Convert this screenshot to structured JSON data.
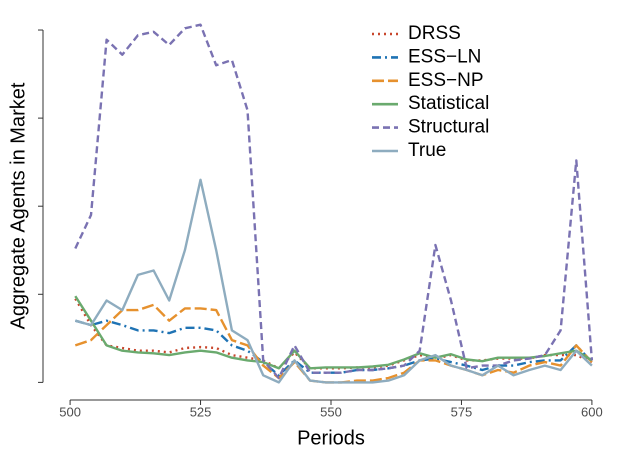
{
  "chart_data": {
    "type": "line",
    "x_label": "Periods",
    "y_label": "Aggregate Agents in Market",
    "x": [
      501,
      504,
      507,
      510,
      513,
      516,
      519,
      522,
      525,
      528,
      531,
      534,
      537,
      540,
      543,
      546,
      549,
      552,
      555,
      558,
      561,
      564,
      567,
      570,
      573,
      576,
      579,
      582,
      585,
      588,
      591,
      594,
      597,
      600
    ],
    "series": [
      {
        "name": "DRSS",
        "color": "#c8462c",
        "linestyle": "dotted",
        "values": [
          0.95,
          0.65,
          0.42,
          0.39,
          0.36,
          0.36,
          0.34,
          0.39,
          0.4,
          0.39,
          0.31,
          0.28,
          0.25,
          0.16,
          0.34,
          0.16,
          0.16,
          0.16,
          0.17,
          0.17,
          0.19,
          0.25,
          0.31,
          0.27,
          0.31,
          0.25,
          0.25,
          0.27,
          0.27,
          0.27,
          0.31,
          0.31,
          0.31,
          0.23
        ]
      },
      {
        "name": "ESS−LN",
        "color": "#1f73b4",
        "linestyle": "dashdot",
        "values": [
          0.7,
          0.65,
          0.7,
          0.65,
          0.59,
          0.59,
          0.56,
          0.62,
          0.62,
          0.59,
          0.42,
          0.36,
          0.23,
          0.08,
          0.25,
          0.11,
          0.11,
          0.11,
          0.14,
          0.14,
          0.16,
          0.19,
          0.25,
          0.27,
          0.23,
          0.19,
          0.14,
          0.19,
          0.19,
          0.23,
          0.25,
          0.25,
          0.42,
          0.23
        ]
      },
      {
        "name": "ESS−NP",
        "color": "#e6912e",
        "linestyle": "longdash",
        "values": [
          0.42,
          0.48,
          0.65,
          0.82,
          0.82,
          0.88,
          0.7,
          0.84,
          0.84,
          0.82,
          0.48,
          0.42,
          0.19,
          0.05,
          0.23,
          0.02,
          0.0,
          0.0,
          0.02,
          0.02,
          0.05,
          0.11,
          0.25,
          0.25,
          0.19,
          0.14,
          0.08,
          0.14,
          0.11,
          0.19,
          0.23,
          0.19,
          0.42,
          0.23
        ]
      },
      {
        "name": "Statistical",
        "color": "#6aaa6e",
        "linestyle": "solid",
        "values": [
          0.98,
          0.7,
          0.42,
          0.36,
          0.34,
          0.33,
          0.31,
          0.34,
          0.36,
          0.34,
          0.28,
          0.25,
          0.23,
          0.16,
          0.36,
          0.16,
          0.17,
          0.17,
          0.17,
          0.18,
          0.2,
          0.26,
          0.33,
          0.28,
          0.32,
          0.26,
          0.24,
          0.28,
          0.28,
          0.28,
          0.3,
          0.33,
          0.36,
          0.25
        ]
      },
      {
        "name": "Structural",
        "color": "#7a72b2",
        "linestyle": "dashed",
        "values": [
          1.52,
          1.9,
          3.89,
          3.72,
          3.94,
          3.98,
          3.83,
          4.02,
          4.06,
          3.6,
          3.66,
          3.09,
          0.25,
          0.05,
          0.42,
          0.11,
          0.11,
          0.11,
          0.14,
          0.14,
          0.16,
          0.19,
          0.36,
          1.56,
          0.93,
          0.16,
          0.19,
          0.19,
          0.25,
          0.27,
          0.31,
          0.59,
          2.52,
          0.25
        ]
      },
      {
        "name": "True",
        "color": "#8eacbf",
        "linestyle": "solid",
        "values": [
          0.7,
          0.65,
          0.93,
          0.82,
          1.22,
          1.27,
          0.93,
          1.5,
          2.3,
          1.5,
          0.59,
          0.48,
          0.08,
          0.0,
          0.25,
          0.02,
          0.0,
          0.0,
          0.0,
          0.0,
          0.02,
          0.08,
          0.25,
          0.31,
          0.19,
          0.14,
          0.08,
          0.19,
          0.08,
          0.14,
          0.19,
          0.14,
          0.36,
          0.19
        ]
      }
    ],
    "xlim": [
      495,
      605
    ],
    "xticks": [
      500,
      525,
      550,
      575,
      600
    ],
    "ylim": [
      -0.2,
      4.25
    ],
    "yticks": [
      0,
      1,
      2,
      3,
      4
    ],
    "legend_position": "top-right"
  }
}
